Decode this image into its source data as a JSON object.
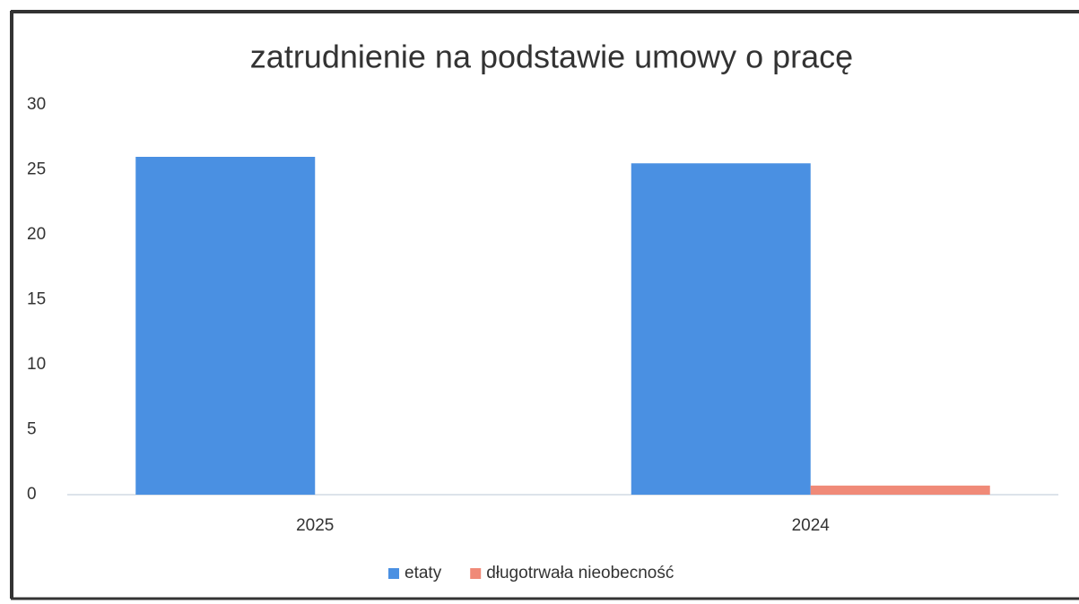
{
  "chart_data": {
    "type": "bar",
    "title": "zatrudnienie na podstawie umowy o pracę",
    "categories": [
      "2025",
      "2024"
    ],
    "series": [
      {
        "name": "etaty",
        "color": "#4a90e2",
        "values": [
          26,
          25.5
        ]
      },
      {
        "name": "długotrwała nieobecność",
        "color": "#f08a78",
        "values": [
          0,
          0.7
        ]
      }
    ],
    "ylim": [
      0,
      30
    ],
    "yticks": [
      0,
      5,
      10,
      15,
      20,
      25,
      30
    ],
    "grid": false,
    "legend": "bottom"
  }
}
